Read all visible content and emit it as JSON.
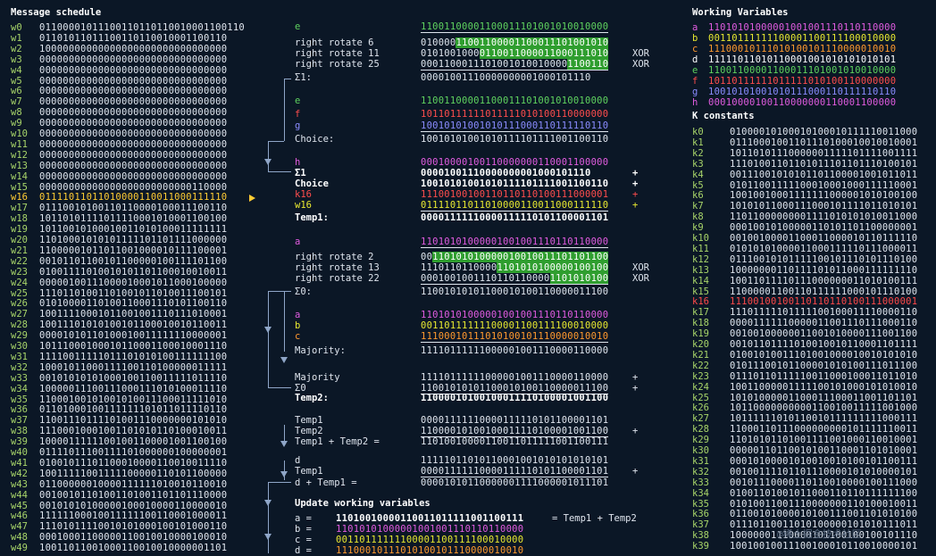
{
  "headings": {
    "message_schedule": "Message schedule",
    "working_variables": "Working Variables",
    "k_constants": "K constants",
    "update": "Update working variables"
  },
  "message_schedule": [
    [
      "w0",
      "01100001011100110110110010001100110"
    ],
    [
      "w1",
      "01101011011100110110010001100110"
    ],
    [
      "w2",
      "10000000000000000000000000000000"
    ],
    [
      "w3",
      "00000000000000000000000000000000"
    ],
    [
      "w4",
      "00000000000000000000000000000000"
    ],
    [
      "w5",
      "00000000000000000000000000000000"
    ],
    [
      "w6",
      "00000000000000000000000000000000"
    ],
    [
      "w7",
      "00000000000000000000000000000000"
    ],
    [
      "w8",
      "00000000000000000000000000000000"
    ],
    [
      "w9",
      "00000000000000000000000000000000"
    ],
    [
      "w10",
      "00000000000000000000000000000000"
    ],
    [
      "w11",
      "00000000000000000000000000000000"
    ],
    [
      "w12",
      "00000000000000000000000000000000"
    ],
    [
      "w13",
      "00000000000000000000000000000000"
    ],
    [
      "w14",
      "00000000000000000000000000000000"
    ],
    [
      "w15",
      "00000000000000000000000000110000"
    ],
    [
      "w16",
      "01111011011010000110011000111110"
    ],
    [
      "w17",
      "01110010100110110000100011100110"
    ],
    [
      "w18",
      "10110101111011110001010001100100"
    ],
    [
      "w19",
      "10110010100010011010100011111111"
    ],
    [
      "w20",
      "11010001010101111101101111000000"
    ],
    [
      "w21",
      "11000001011011001000010111100001"
    ],
    [
      "w22",
      "00101101100101100000100111101100"
    ],
    [
      "w23",
      "01001111010010101101100010010011"
    ],
    [
      "w24",
      "00000100111000010001011000100000"
    ],
    [
      "w25",
      "11101101001101001011010011100101"
    ],
    [
      "w26",
      "01010000110100110001110101100110"
    ],
    [
      "w27",
      "10011110001011001001110111010001"
    ],
    [
      "w28",
      "10011101010100101100010010110011"
    ],
    [
      "w29",
      "00001010110100010011111110000001"
    ],
    [
      "w30",
      "10111000100010110001100010001110"
    ],
    [
      "w31",
      "11110011111011101010100111111100"
    ],
    [
      "w32",
      "10001011000111100110100000011111"
    ],
    [
      "w33",
      "00101010101000100110011111011110"
    ],
    [
      "w34",
      "10000011100111000111010100011110"
    ],
    [
      "w35",
      "11000100101001010011100011111010"
    ],
    [
      "w36",
      "01101000100111111101011011110110"
    ],
    [
      "w37",
      "11001110111101001110000000101010"
    ],
    [
      "w38",
      "11100010001001101010110100010011"
    ],
    [
      "w39",
      "10000111111001001100001001100100"
    ],
    [
      "w40",
      "01111011100111101000000100000001"
    ],
    [
      "w41",
      "01001011101100010000110010011110"
    ],
    [
      "w42",
      "10011111001111100000110101100000"
    ],
    [
      "w43",
      "01100000010000111111010010110010"
    ],
    [
      "w44",
      "00100101101001101001101101110000"
    ],
    [
      "w45",
      "00101010100000100010000110000010"
    ],
    [
      "w46",
      "11111100010011111100110001000011"
    ],
    [
      "w47",
      "11101011110010101000100101000110"
    ],
    [
      "w48",
      "00010001100000110010010000100010"
    ],
    [
      "w49",
      "10011011001000110010010000001101"
    ]
  ],
  "working_variables": [
    [
      "a",
      "11010101000001001001110110110000",
      "#e05ce0"
    ],
    [
      "b",
      "00110111111100001100111100010000",
      "#e8e830"
    ],
    [
      "c",
      "11100010111010100101110000010010",
      "#ff9a2e"
    ],
    [
      "d",
      "11111011010110001001010101010101",
      "#ffffff"
    ],
    [
      "e",
      "11001100001100011101001010010000",
      "#5fd35f"
    ],
    [
      "f",
      "10110111111011111010100110000000",
      "#ff4d4d"
    ],
    [
      "g",
      "10010101001010111000110111110110",
      "#8a8cff"
    ],
    [
      "h",
      "00010000100110000000110001100000",
      "#e05ce0"
    ]
  ],
  "k_constants": [
    [
      "k0",
      "01000010100010100010111110011000"
    ],
    [
      "k1",
      "01110001001101110100010010010001"
    ],
    [
      "k2",
      "10110101110000001111101111001111"
    ],
    [
      "k3",
      "11101001101101011101101110100101"
    ],
    [
      "k4",
      "00111001010101101100001001011011"
    ],
    [
      "k5",
      "01011001111100010001000111110001"
    ],
    [
      "k6",
      "10010010001111111000001010100100"
    ],
    [
      "k7",
      "10101011000111000101111011010101"
    ],
    [
      "k8",
      "11011000000001111010101010011000"
    ],
    [
      "k9",
      "00010010100000110101101100000001"
    ],
    [
      "k10",
      "00100100001100011000010110111110"
    ],
    [
      "k11",
      "01010101000011000111110111000011"
    ],
    [
      "k12",
      "01110010101111100101110101110100"
    ],
    [
      "k13",
      "10000000110111101011000111111110"
    ],
    [
      "k14",
      "10011011110111000000011010100111"
    ],
    [
      "k15",
      "11000001100110111111000101110100"
    ],
    [
      "k16",
      "11100100100110110110100111000001"
    ],
    [
      "k17",
      "11101111101111100100011110000110"
    ],
    [
      "k18",
      "00001111110000011001110111000110"
    ],
    [
      "k19",
      "00100100000011001010000111001100"
    ],
    [
      "k20",
      "00101101111010010010110001101111"
    ],
    [
      "k21",
      "01001010011101001000010010101010"
    ],
    [
      "k22",
      "01011100101100001010100111011100"
    ],
    [
      "k23",
      "01110110111110011000100011011010"
    ],
    [
      "k24",
      "10011000001111100101000101010010"
    ],
    [
      "k25",
      "10101000001100011100011001101101"
    ],
    [
      "k26",
      "10110000000000110010011111001000"
    ],
    [
      "k27",
      "10111111010110010111111111000111"
    ],
    [
      "k28",
      "11000110111000000000101111110011"
    ],
    [
      "k29",
      "11010101101001111001000110010001"
    ],
    [
      "k30",
      "00000110110010100110001101010001"
    ],
    [
      "k31",
      "00010100001010010010100101100111"
    ],
    [
      "k32",
      "00100111101101110000101010000101"
    ],
    [
      "k33",
      "00101110000110110010000100111000"
    ],
    [
      "k34",
      "01001101001011000110110111111100"
    ],
    [
      "k35",
      "01010011001110000000110100010011"
    ],
    [
      "k36",
      "01100101000010100111001101010100"
    ],
    [
      "k37",
      "01110110011010100000101010111011"
    ],
    [
      "k38",
      "10000001110000101100100100101110"
    ],
    [
      "k39",
      "10010010011100100010110010000101"
    ]
  ],
  "sigma1": {
    "e_label": "e",
    "e_bits": "11001100001100011101001010010000",
    "rows": [
      {
        "label": "right rotate 6",
        "pre": "010000",
        "hl": "11001100001100011101001010",
        "post": "",
        "op": ""
      },
      {
        "label": "right rotate 11",
        "pre": "0101001000",
        "hl": "0110011000011000111010",
        "post": "",
        "op": "XOR"
      },
      {
        "label": "right rotate 25",
        "pre": "0001100011101001010010000",
        "hl": "1100110",
        "post": "",
        "op": "XOR"
      }
    ],
    "result_label": "Σ1:",
    "result": "00001001110000000001000101110"
  },
  "choice": {
    "e_label": "e",
    "e_bits": "11001100001100011101001010010000",
    "f_label": "f",
    "f_bits": "10110111111011111010100110000000",
    "g_label": "g",
    "g_bits": "10010101001010111000110111110110",
    "label": "Choice:",
    "result": "10010101001010111101111001100110"
  },
  "temp1": {
    "rows": [
      {
        "label": "h",
        "bits": "00010000100110000000110001100000",
        "op": "",
        "color": "mag"
      },
      {
        "label": "Σ1",
        "bits": "00001001110000000001000101110",
        "op": "+",
        "color": "white"
      },
      {
        "label": "Choice",
        "bits": "10010101001010111101111001100110",
        "op": "+",
        "color": "white"
      },
      {
        "label": "k16",
        "bits": "11100100100110110110100111000001",
        "op": "+",
        "color": "red"
      },
      {
        "label": "w16",
        "bits": "01111011011010000110011000111110",
        "op": "+",
        "color": "yellow"
      }
    ],
    "result_label": "Temp1:",
    "result": "00001111110000111110101100001101"
  },
  "sigma0": {
    "a_label": "a",
    "a_bits": "11010101000001001001110110110000",
    "rows": [
      {
        "label": "right rotate 2",
        "pre": "00",
        "hl": "110101010000010010011101101100",
        "op": ""
      },
      {
        "label": "right rotate 13",
        "pre": "1110110110000",
        "hl": "1101010100000100100",
        "op": "XOR"
      },
      {
        "label": "right rotate 22",
        "pre": "0001001001110110110000",
        "hl": "1101010100",
        "op": "XOR"
      }
    ],
    "result_label": "Σ0:",
    "result": "11001010101100010100110000011100"
  },
  "majority": {
    "rows": [
      {
        "label": "a",
        "bits": "11010101000001001001110110110000",
        "color": "mag"
      },
      {
        "label": "b",
        "bits": "00110111111100001100111100010000",
        "color": "yellow"
      },
      {
        "label": "c",
        "bits": "11100010111010100101110000010010",
        "color": "orange"
      }
    ],
    "label": "Majority:",
    "result": "11110111111000001001110000110000"
  },
  "temp2": {
    "rows": [
      {
        "label": "Majority",
        "bits": "11110111111000001001110000110000",
        "op": "+"
      },
      {
        "label": "Σ0",
        "bits": "11001010101100010100110000011100",
        "op": "+"
      }
    ],
    "result_label": "Temp2:",
    "result": "11000010100100011110100001001100"
  },
  "sum": {
    "rows": [
      {
        "label": "Temp1",
        "bits": "00001111110000111110101100001101",
        "op": ""
      },
      {
        "label": "Temp2",
        "bits": "11000010100100011110100001001100",
        "op": "+"
      }
    ],
    "result_label": "Temp1 + Temp2 =",
    "result": "11010010000110011011111001100111"
  },
  "d_sum": {
    "rows": [
      {
        "label": "d",
        "bits": "11111011010110001001010101010101",
        "op": ""
      },
      {
        "label": "Temp1",
        "bits": "00001111110000111110101100001101",
        "op": "+"
      }
    ],
    "result_label": "d + Temp1 =",
    "result": "00001010110000001111000001011101"
  },
  "update": [
    {
      "label": "a =",
      "bits": "11010010000110011011111001100111",
      "note": "= Temp1 + Temp2",
      "color": "white"
    },
    {
      "label": "b =",
      "bits": "11010101000001001001110110110000",
      "note": "",
      "color": "mag"
    },
    {
      "label": "c =",
      "bits": "00110111111100001100111100010000",
      "note": "",
      "color": "yellow"
    },
    {
      "label": "d =",
      "bits": "11100010111010100101110000010010",
      "note": "",
      "color": "orange"
    }
  ],
  "watermark": "@稀土掘金技术社区"
}
